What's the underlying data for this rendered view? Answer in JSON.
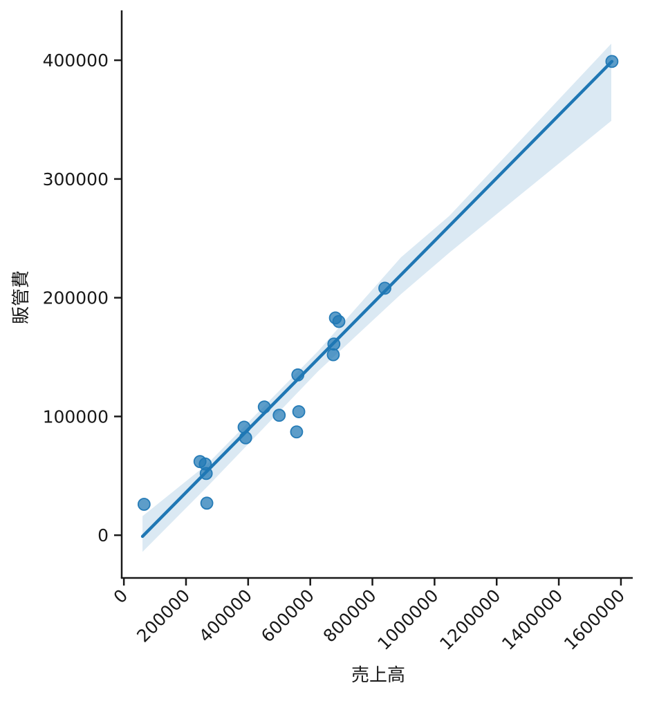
{
  "chart_data": {
    "type": "scatter",
    "title": "",
    "xlabel": "売上高",
    "ylabel": "販管費",
    "x_ticks": [
      0,
      200000,
      400000,
      600000,
      800000,
      1000000,
      1200000,
      1400000,
      1600000
    ],
    "y_ticks": [
      0,
      100000,
      200000,
      300000,
      400000
    ],
    "xlim": [
      -7000,
      1638000
    ],
    "ylim": [
      -36000,
      442000
    ],
    "grid": false,
    "legend": "none",
    "x_tick_rotation_deg": 45,
    "series": [
      {
        "name": "scatter-points",
        "type": "scatter",
        "points": [
          [
            65000,
            26000
          ],
          [
            245000,
            62000
          ],
          [
            262000,
            60000
          ],
          [
            265000,
            52000
          ],
          [
            267000,
            27000
          ],
          [
            387000,
            91000
          ],
          [
            392000,
            82000
          ],
          [
            452000,
            108000
          ],
          [
            500000,
            101000
          ],
          [
            560000,
            135000
          ],
          [
            563000,
            104000
          ],
          [
            556000,
            87000
          ],
          [
            676000,
            161000
          ],
          [
            674000,
            152000
          ],
          [
            681000,
            183000
          ],
          [
            692000,
            180000
          ],
          [
            840000,
            208000
          ],
          [
            1571000,
            399000
          ]
        ]
      },
      {
        "name": "regression-line",
        "type": "line",
        "points": [
          [
            60000,
            -1000
          ],
          [
            1571000,
            399000
          ]
        ]
      },
      {
        "name": "confidence-band",
        "type": "band",
        "x": [
          60000,
          269000,
          625000,
          892000,
          1048000,
          1569000
        ],
        "upper": [
          16000,
          60000,
          155000,
          234000,
          269000,
          414000
        ],
        "lower": [
          -14000,
          41000,
          138000,
          203000,
          238000,
          349000
        ]
      }
    ],
    "colors": {
      "accent_blue": "#1f77b4",
      "marker_fill": "rgba(31,119,180,0.72)",
      "marker_edge": "rgba(31,119,180,0.95)",
      "band_fill": "rgba(31,119,180,0.16)",
      "axis": "#191919"
    }
  }
}
